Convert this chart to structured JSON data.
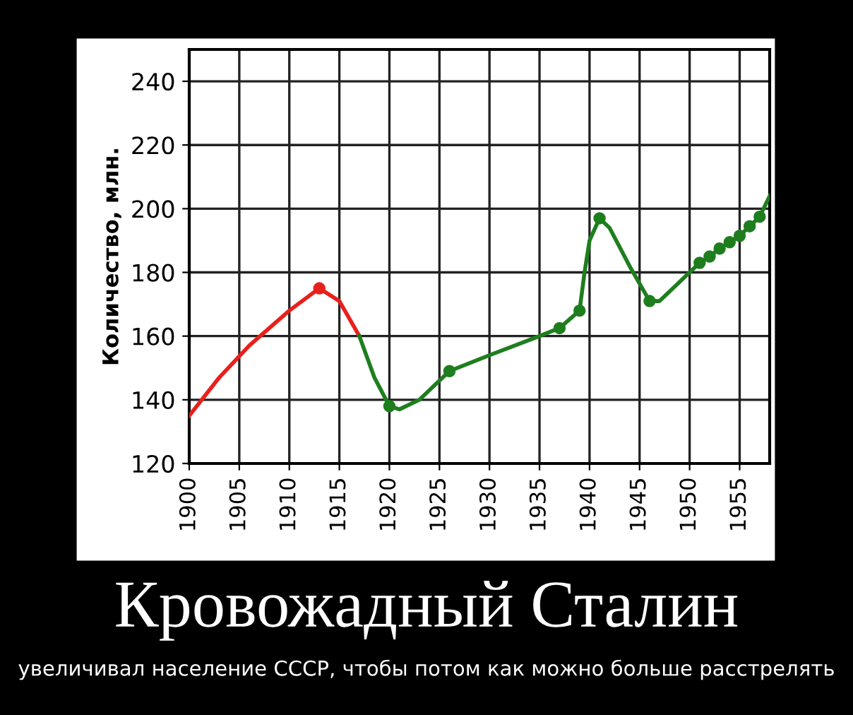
{
  "chart_data": {
    "type": "line",
    "title": "Кровожадный Сталин",
    "subtitle": "увеличивал население СССР, чтобы потом как можно больше расстрелять",
    "ylabel": "Количество, млн.",
    "xlim": [
      1900,
      1958
    ],
    "xticks": [
      1900,
      1905,
      1910,
      1915,
      1920,
      1925,
      1930,
      1935,
      1940,
      1945,
      1950,
      1955
    ],
    "ylim": [
      120,
      250
    ],
    "yticks": [
      120,
      140,
      160,
      180,
      200,
      220,
      240
    ],
    "grid": true,
    "legend": false,
    "series": [
      {
        "color": "#e8201c",
        "marker": "none",
        "x": [
          1900,
          1903,
          1906,
          1910,
          1913,
          1915,
          1917
        ],
        "values": [
          135,
          147,
          157,
          168,
          175,
          171,
          160
        ]
      },
      {
        "color": "#1e7e1e",
        "marker": "none",
        "x": [
          1917,
          1918.5,
          1920,
          1921,
          1923,
          1925,
          1926,
          1930,
          1935,
          1937,
          1939,
          1939.5,
          1940,
          1941,
          1942,
          1944,
          1946,
          1947,
          1950,
          1951,
          1952,
          1953,
          1954,
          1955,
          1956,
          1957,
          1958
        ],
        "values": [
          160,
          147,
          138,
          137,
          140,
          146,
          149,
          154,
          160,
          162.5,
          168,
          180,
          190,
          197,
          194,
          182,
          171,
          171,
          180,
          183,
          185,
          187.5,
          189.5,
          191.5,
          194.5,
          197.5,
          204
        ]
      },
      {
        "type": "scatter",
        "color": "#e8201c",
        "marker": "circle",
        "x": [
          1913
        ],
        "values": [
          175
        ]
      },
      {
        "type": "scatter",
        "color": "#1e7e1e",
        "marker": "circle",
        "x": [
          1920,
          1926,
          1937,
          1939,
          1941,
          1946,
          1951,
          1952,
          1953,
          1954,
          1955,
          1956,
          1957
        ],
        "values": [
          138,
          149,
          162.5,
          168,
          197,
          171,
          183,
          185,
          187.5,
          189.5,
          191.5,
          194.5,
          197.5
        ]
      }
    ]
  }
}
